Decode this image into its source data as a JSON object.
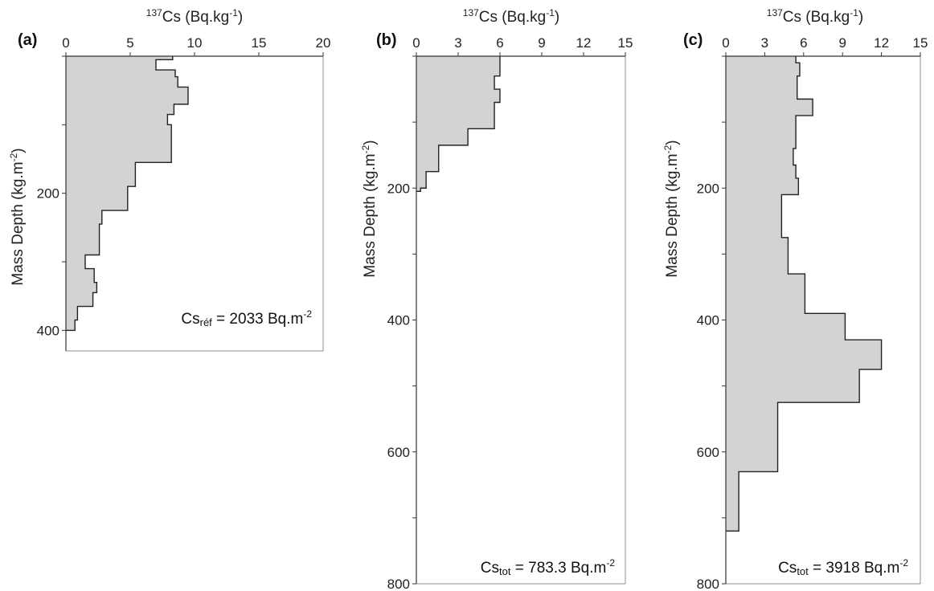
{
  "chart_data": [
    {
      "type": "area",
      "panel_label": "(a)",
      "title_prefix": "",
      "title_sup": "137",
      "title_main": "Cs (Bq.kg",
      "title_unit_sup": "-1",
      "title_end": ")",
      "ylabel_main": "Mass Depth (kg.m",
      "ylabel_sup": "-2",
      "ylabel_end": ")",
      "xlim": [
        0,
        20
      ],
      "ylim": [
        0,
        430
      ],
      "xticks": [
        "0",
        "5",
        "10",
        "15",
        "20"
      ],
      "yticks": [
        "200",
        "400"
      ],
      "annotation": {
        "main": "Cs",
        "sub": "réf",
        "rest": " = 2033 Bq.m",
        "sup": "-2"
      },
      "series": [
        {
          "profile_steps": [
            {
              "top": 0,
              "bottom": 5,
              "value": 8.3
            },
            {
              "top": 5,
              "bottom": 20,
              "value": 7.0
            },
            {
              "top": 20,
              "bottom": 30,
              "value": 8.5
            },
            {
              "top": 30,
              "bottom": 45,
              "value": 8.7
            },
            {
              "top": 45,
              "bottom": 70,
              "value": 9.5
            },
            {
              "top": 70,
              "bottom": 85,
              "value": 8.4
            },
            {
              "top": 85,
              "bottom": 100,
              "value": 7.9
            },
            {
              "top": 100,
              "bottom": 155,
              "value": 8.2
            },
            {
              "top": 155,
              "bottom": 190,
              "value": 5.4
            },
            {
              "top": 190,
              "bottom": 225,
              "value": 4.8
            },
            {
              "top": 225,
              "bottom": 245,
              "value": 2.8
            },
            {
              "top": 245,
              "bottom": 290,
              "value": 2.6
            },
            {
              "top": 290,
              "bottom": 310,
              "value": 1.5
            },
            {
              "top": 310,
              "bottom": 330,
              "value": 2.2
            },
            {
              "top": 330,
              "bottom": 345,
              "value": 2.4
            },
            {
              "top": 345,
              "bottom": 365,
              "value": 2.1
            },
            {
              "top": 365,
              "bottom": 385,
              "value": 0.9
            },
            {
              "top": 385,
              "bottom": 400,
              "value": 0.7
            }
          ]
        }
      ]
    },
    {
      "type": "area",
      "panel_label": "(b)",
      "title_sup": "137",
      "title_main": "Cs (Bq.kg",
      "title_unit_sup": "-1",
      "title_end": ")",
      "ylabel_main": "Mass Depth (kg.m",
      "ylabel_sup": "-2",
      "ylabel_end": ")",
      "xlim": [
        0,
        15
      ],
      "ylim": [
        0,
        800
      ],
      "xticks": [
        "0",
        "3",
        "6",
        "9",
        "12",
        "15"
      ],
      "yticks": [
        "200",
        "400",
        "600",
        "800"
      ],
      "annotation": {
        "main": "Cs",
        "sub": "tot",
        "rest": " = 783.3 Bq.m",
        "sup": "-2"
      },
      "series": [
        {
          "profile_steps": [
            {
              "top": 0,
              "bottom": 30,
              "value": 6.0
            },
            {
              "top": 30,
              "bottom": 50,
              "value": 5.6
            },
            {
              "top": 50,
              "bottom": 70,
              "value": 6.0
            },
            {
              "top": 70,
              "bottom": 110,
              "value": 5.6
            },
            {
              "top": 110,
              "bottom": 135,
              "value": 3.7
            },
            {
              "top": 135,
              "bottom": 175,
              "value": 1.6
            },
            {
              "top": 175,
              "bottom": 200,
              "value": 0.7
            },
            {
              "top": 200,
              "bottom": 205,
              "value": 0.3
            }
          ]
        }
      ]
    },
    {
      "type": "area",
      "panel_label": "(c)",
      "title_sup": "137",
      "title_main": "Cs (Bq.kg",
      "title_unit_sup": "-1",
      "title_end": ")",
      "ylabel_main": "Mass Depth (kg.m",
      "ylabel_sup": "-2",
      "ylabel_end": ")",
      "xlim": [
        0,
        15
      ],
      "ylim": [
        0,
        800
      ],
      "xticks": [
        "0",
        "3",
        "6",
        "9",
        "12",
        "15"
      ],
      "yticks": [
        "200",
        "400",
        "600",
        "800"
      ],
      "annotation": {
        "main": "Cs",
        "sub": "tot",
        "rest": " = 3918 Bq.m",
        "sup": "-2"
      },
      "series": [
        {
          "profile_steps": [
            {
              "top": 0,
              "bottom": 10,
              "value": 5.4
            },
            {
              "top": 10,
              "bottom": 30,
              "value": 5.7
            },
            {
              "top": 30,
              "bottom": 65,
              "value": 5.5
            },
            {
              "top": 65,
              "bottom": 90,
              "value": 6.7
            },
            {
              "top": 90,
              "bottom": 140,
              "value": 5.4
            },
            {
              "top": 140,
              "bottom": 165,
              "value": 5.2
            },
            {
              "top": 165,
              "bottom": 185,
              "value": 5.4
            },
            {
              "top": 185,
              "bottom": 210,
              "value": 5.6
            },
            {
              "top": 210,
              "bottom": 275,
              "value": 4.3
            },
            {
              "top": 275,
              "bottom": 330,
              "value": 4.8
            },
            {
              "top": 330,
              "bottom": 390,
              "value": 6.1
            },
            {
              "top": 390,
              "bottom": 430,
              "value": 9.2
            },
            {
              "top": 430,
              "bottom": 475,
              "value": 12.0
            },
            {
              "top": 475,
              "bottom": 525,
              "value": 10.3
            },
            {
              "top": 525,
              "bottom": 630,
              "value": 4.0
            },
            {
              "top": 630,
              "bottom": 720,
              "value": 1.0
            }
          ]
        }
      ]
    }
  ]
}
